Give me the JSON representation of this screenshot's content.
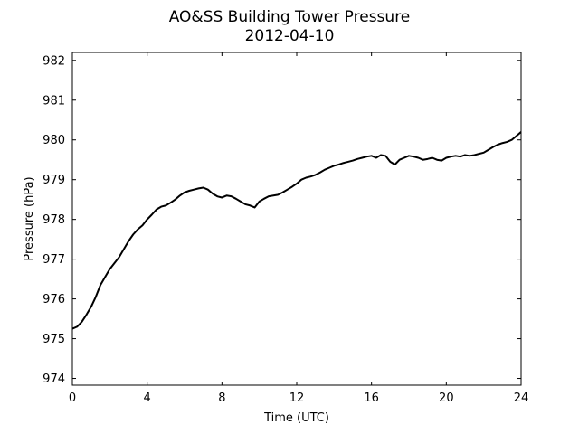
{
  "title_line1": "AO&SS Building Tower Pressure",
  "title_line2": "2012-04-10",
  "chart_data": {
    "type": "line",
    "title": "AO&SS Building Tower Pressure\n2012-04-10",
    "xlabel": "Time (UTC)",
    "ylabel": "Pressure (hPa)",
    "xlim": [
      0,
      24
    ],
    "ylim": [
      973.83,
      982.2
    ],
    "x_ticks": [
      0,
      4,
      8,
      12,
      16,
      20,
      24
    ],
    "y_ticks": [
      974,
      975,
      976,
      977,
      978,
      979,
      980,
      981,
      982
    ],
    "x_tick_labels": [
      "0",
      "4",
      "8",
      "12",
      "16",
      "20",
      "24"
    ],
    "y_tick_labels": [
      "974",
      "975",
      "976",
      "977",
      "978",
      "979",
      "980",
      "981",
      "982"
    ],
    "grid": false,
    "line_color": "#000000",
    "series": [
      {
        "x": [
          0,
          0.25,
          0.5,
          0.75,
          1,
          1.25,
          1.5,
          1.75,
          2,
          2.25,
          2.5,
          2.75,
          3,
          3.25,
          3.5,
          3.75,
          4,
          4.25,
          4.5,
          4.75,
          5,
          5.25,
          5.5,
          5.75,
          6,
          6.25,
          6.5,
          6.75,
          7,
          7.25,
          7.5,
          7.75,
          8,
          8.25,
          8.5,
          8.75,
          9,
          9.25,
          9.5,
          9.75,
          10,
          10.25,
          10.5,
          10.75,
          11,
          11.25,
          11.5,
          11.75,
          12,
          12.25,
          12.5,
          12.75,
          13,
          13.25,
          13.5,
          13.75,
          14,
          14.25,
          14.5,
          14.75,
          15,
          15.25,
          15.5,
          15.75,
          16,
          16.25,
          16.5,
          16.75,
          17,
          17.25,
          17.5,
          17.75,
          18,
          18.25,
          18.5,
          18.75,
          19,
          19.25,
          19.5,
          19.75,
          20,
          20.25,
          20.5,
          20.75,
          21,
          21.25,
          21.5,
          21.75,
          22,
          22.25,
          22.5,
          22.75,
          23,
          23.25,
          23.5,
          23.75,
          24
        ],
        "values": [
          975.25,
          975.3,
          975.42,
          975.6,
          975.8,
          976.05,
          976.35,
          976.55,
          976.75,
          976.9,
          977.05,
          977.25,
          977.45,
          977.62,
          977.75,
          977.85,
          978.0,
          978.12,
          978.25,
          978.32,
          978.35,
          978.42,
          978.5,
          978.6,
          978.68,
          978.72,
          978.75,
          978.78,
          978.8,
          978.75,
          978.65,
          978.58,
          978.55,
          978.6,
          978.58,
          978.52,
          978.45,
          978.38,
          978.35,
          978.3,
          978.45,
          978.52,
          978.58,
          978.6,
          978.62,
          978.68,
          978.75,
          978.82,
          978.9,
          979.0,
          979.05,
          979.08,
          979.12,
          979.18,
          979.25,
          979.3,
          979.35,
          979.38,
          979.42,
          979.45,
          979.48,
          979.52,
          979.55,
          979.58,
          979.6,
          979.55,
          979.62,
          979.6,
          979.45,
          979.38,
          979.5,
          979.55,
          979.6,
          979.58,
          979.55,
          979.5,
          979.52,
          979.55,
          979.5,
          979.48,
          979.55,
          979.58,
          979.6,
          979.58,
          979.62,
          979.6,
          979.62,
          979.65,
          979.68,
          979.75,
          979.82,
          979.88,
          979.92,
          979.95,
          980.0,
          980.1,
          980.2
        ]
      }
    ]
  }
}
